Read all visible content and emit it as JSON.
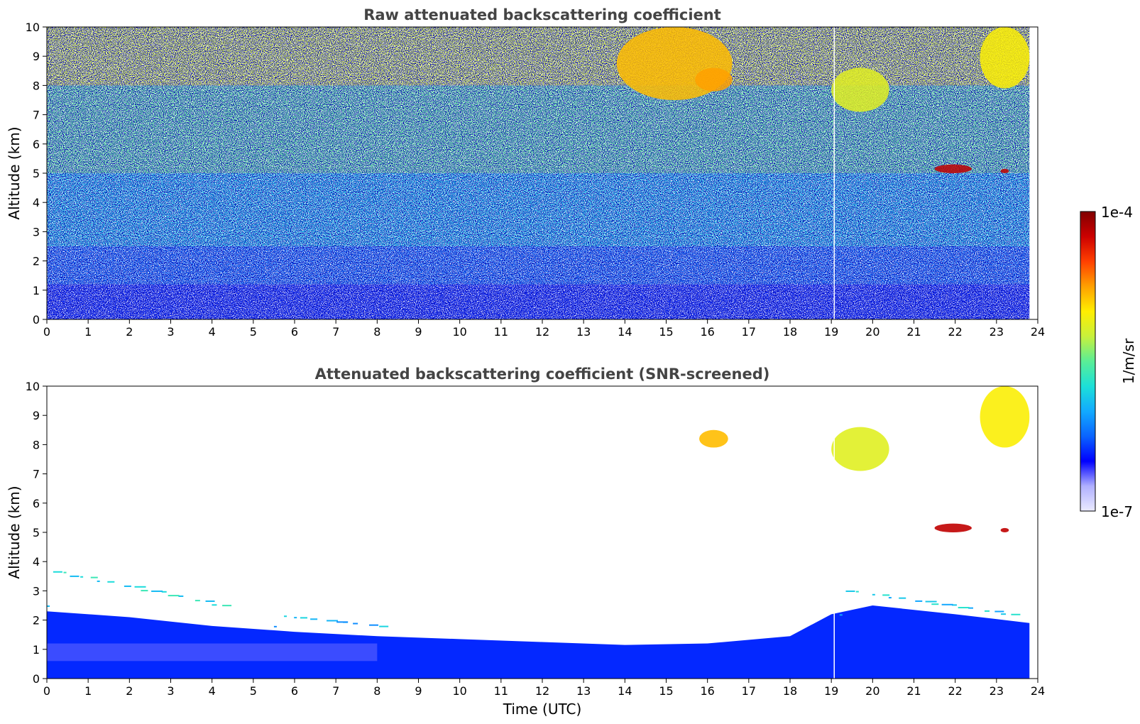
{
  "chart_data": [
    {
      "type": "heatmap",
      "title": "Raw attenuated backscattering coefficient",
      "xlabel": "",
      "ylabel": "Altitude (km)",
      "xlim": [
        0,
        24
      ],
      "ylim": [
        0,
        10
      ],
      "xticks": [
        "0",
        "1",
        "2",
        "3",
        "4",
        "5",
        "6",
        "7",
        "8",
        "9",
        "10",
        "11",
        "12",
        "13",
        "14",
        "15",
        "16",
        "17",
        "18",
        "19",
        "20",
        "21",
        "22",
        "23",
        "24"
      ],
      "yticks": [
        "0",
        "1",
        "2",
        "3",
        "4",
        "5",
        "6",
        "7",
        "8",
        "9",
        "10"
      ],
      "data_end_time": 23.8,
      "gap_time": 19.07,
      "features": [
        {
          "t0": 0,
          "t1": 23.8,
          "z0": 0,
          "z1": 1.2,
          "level": 0.2
        },
        {
          "t0": 0,
          "t1": 23.8,
          "z0": 1.2,
          "z1": 2.5,
          "level": 0.27
        },
        {
          "t0": 0,
          "t1": 23.8,
          "z0": 2.5,
          "z1": 5,
          "level": 0.38
        },
        {
          "t0": 0,
          "t1": 23.8,
          "z0": 5,
          "z1": 8,
          "level": 0.5
        },
        {
          "t0": 0,
          "t1": 23.8,
          "z0": 8,
          "z1": 10,
          "level": 0.6
        },
        {
          "t0": 13.8,
          "t1": 16.6,
          "z0": 7.5,
          "z1": 10,
          "level": 0.72
        },
        {
          "t0": 15.7,
          "t1": 16.6,
          "z0": 7.8,
          "z1": 8.6,
          "level": 0.75
        },
        {
          "t0": 19.0,
          "t1": 20.4,
          "z0": 7.1,
          "z1": 8.6,
          "level": 0.62
        },
        {
          "t0": 22.6,
          "t1": 23.8,
          "z0": 7.9,
          "z1": 10,
          "level": 0.66
        },
        {
          "t0": 21.5,
          "t1": 22.4,
          "z0": 5.0,
          "z1": 5.3,
          "level": 0.93
        },
        {
          "t0": 23.1,
          "t1": 23.3,
          "z0": 5.0,
          "z1": 5.15,
          "level": 0.93
        }
      ]
    },
    {
      "type": "heatmap",
      "title": "Attenuated backscattering coefficient (SNR-screened)",
      "xlabel": "Time (UTC)",
      "ylabel": "Altitude (km)",
      "xlim": [
        0,
        24
      ],
      "ylim": [
        0,
        10
      ],
      "xticks": [
        "0",
        "1",
        "2",
        "3",
        "4",
        "5",
        "6",
        "7",
        "8",
        "9",
        "10",
        "11",
        "12",
        "13",
        "14",
        "15",
        "16",
        "17",
        "18",
        "19",
        "20",
        "21",
        "22",
        "23",
        "24"
      ],
      "yticks": [
        "0",
        "1",
        "2",
        "3",
        "4",
        "5",
        "6",
        "7",
        "8",
        "9",
        "10"
      ],
      "data_end_time": 23.8,
      "gap_time": 19.07,
      "boundary_layer_top": [
        [
          0,
          2.3
        ],
        [
          2,
          2.1
        ],
        [
          4,
          1.8
        ],
        [
          6,
          1.6
        ],
        [
          8,
          1.45
        ],
        [
          10,
          1.35
        ],
        [
          12,
          1.25
        ],
        [
          14,
          1.15
        ],
        [
          16,
          1.2
        ],
        [
          18,
          1.45
        ],
        [
          19,
          2.2
        ],
        [
          20,
          2.5
        ],
        [
          22,
          2.2
        ],
        [
          23.8,
          1.9
        ]
      ],
      "aerosol_layers": [
        {
          "t0": 5.5,
          "t1": 8.2,
          "z0": 1.8,
          "z1": 2.2,
          "level": 0.3
        },
        {
          "t0": 0,
          "t1": 4.5,
          "z0": 2.5,
          "z1": 3.8,
          "level": 0.36
        },
        {
          "t0": 19.2,
          "t1": 23.6,
          "z0": 2.2,
          "z1": 3.1,
          "level": 0.33
        }
      ],
      "features": [
        {
          "t0": 19.0,
          "t1": 20.4,
          "z0": 7.1,
          "z1": 8.6,
          "level": 0.62
        },
        {
          "t0": 22.6,
          "t1": 23.8,
          "z0": 7.9,
          "z1": 10,
          "level": 0.66
        },
        {
          "t0": 15.8,
          "t1": 16.5,
          "z0": 7.9,
          "z1": 8.5,
          "level": 0.72
        },
        {
          "t0": 21.5,
          "t1": 22.4,
          "z0": 5.0,
          "z1": 5.3,
          "level": 0.93
        },
        {
          "t0": 23.1,
          "t1": 23.3,
          "z0": 5.0,
          "z1": 5.15,
          "level": 0.93
        }
      ]
    }
  ],
  "colorbar": {
    "label": "1/m/sr",
    "max_label": "1e-4",
    "min_label": "1e-7",
    "scale": "log",
    "colormap": [
      "#eaeaff",
      "#b0b0ff",
      "#0000ff",
      "#0a64ff",
      "#12aaff",
      "#1ce0d8",
      "#5aee96",
      "#c8f03c",
      "#ffee00",
      "#ffa000",
      "#ff4000",
      "#cc0000",
      "#800000"
    ]
  }
}
